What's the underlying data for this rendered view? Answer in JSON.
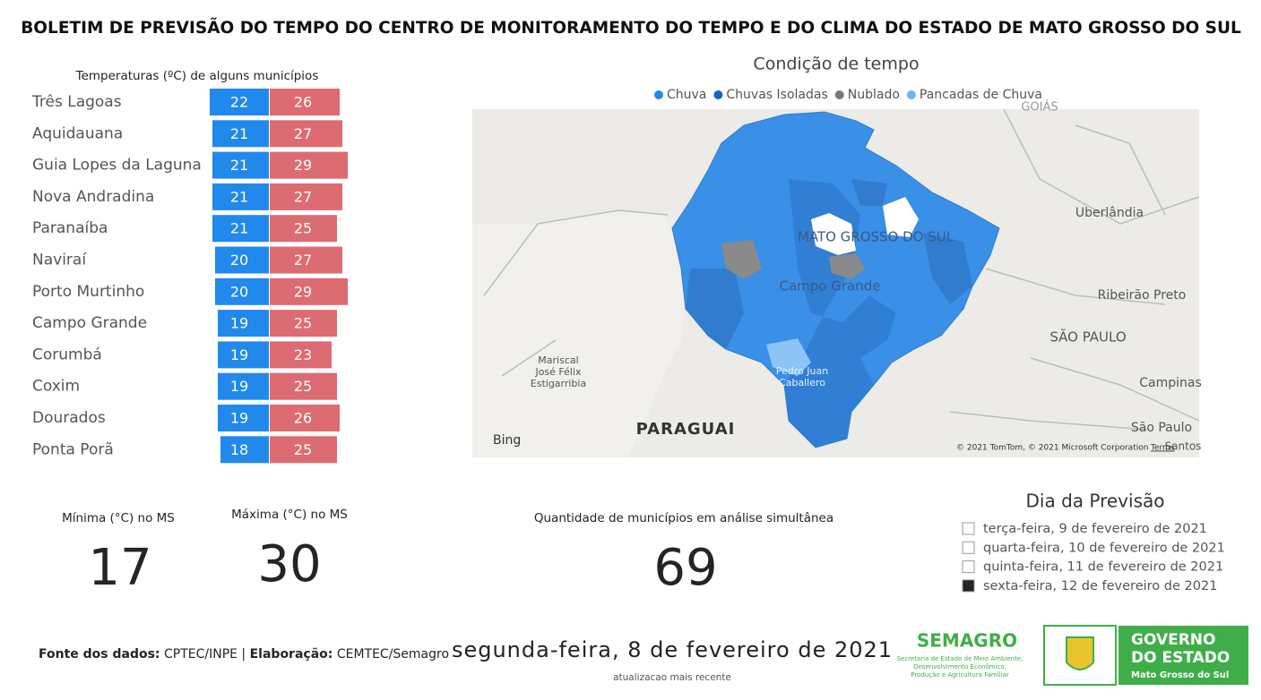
{
  "header": {
    "title": "BOLETIM DE PREVISÃO DO TEMPO DO CENTRO DE MONITORAMENTO DO TEMPO E DO CLIMA DO ESTADO DE MATO GROSSO DO SUL"
  },
  "chart_data": {
    "type": "bar",
    "title": "Temperaturas (ºC) de alguns municípios",
    "categories": [
      "Três Lagoas",
      "Aquidauana",
      "Guia Lopes da Laguna",
      "Nova Andradina",
      "Paranaíba",
      "Naviraí",
      "Porto Murtinho",
      "Campo Grande",
      "Corumbá",
      "Coxim",
      "Dourados",
      "Ponta Porã"
    ],
    "series": [
      {
        "color": "#2189ec",
        "values": [
          22,
          21,
          21,
          21,
          21,
          20,
          20,
          19,
          19,
          19,
          19,
          18
        ]
      },
      {
        "color": "#dd6b72",
        "values": [
          26,
          27,
          29,
          27,
          25,
          27,
          29,
          25,
          23,
          25,
          26,
          25
        ]
      }
    ]
  },
  "map": {
    "title": "Condição de tempo",
    "legend": [
      {
        "name": "Chuva",
        "color": "#2189ec"
      },
      {
        "name": "Chuvas Isoladas",
        "color": "#1565c0"
      },
      {
        "name": "Nublado",
        "color": "#777777"
      },
      {
        "name": "Pancadas de Chuva",
        "color": "#6cb4f5"
      }
    ],
    "labels": [
      "GOIÁS",
      "Uberlândia",
      "MATO GROSSO DO SUL",
      "Campo Grande",
      "Ribeirão Preto",
      "SÃO PAULO",
      "Mariscal",
      "José Félix",
      "Estigarribia",
      "Pedro Juan",
      "Caballero",
      "Campinas",
      "São Paulo",
      "Santos",
      "PARAGUAI"
    ],
    "attribution": "Bing",
    "copyright": "© 2021 TomTom, © 2021 Microsoft Corporation",
    "terms": "Terms"
  },
  "cards": [
    {
      "label": "Mínima (°C) no MS",
      "value": "17"
    },
    {
      "label": "Máxima (°C) no MS",
      "value": "30"
    },
    {
      "label": "Quantidade de municípios em análise simultânea",
      "value": "69"
    }
  ],
  "slicer": {
    "title": "Dia da Previsão",
    "items": [
      {
        "label": "terça-feira, 9 de fevereiro de 2021",
        "selected": false
      },
      {
        "label": "quarta-feira, 10 de fevereiro de 2021",
        "selected": false
      },
      {
        "label": "quinta-feira, 11 de fevereiro de 2021",
        "selected": false
      },
      {
        "label": "sexta-feira, 12 de fevereiro de 2021",
        "selected": true
      }
    ]
  },
  "footer": {
    "source": [
      "Fonte dos dados:",
      "CPTEC/INPE |",
      "Elaboração:",
      "CEMTEC/Semagro"
    ],
    "date": "segunda-feira, 8 de fevereiro de 2021",
    "date_caption": "atualizacao mais recente",
    "semagro": {
      "name": "SEMAGRO",
      "lines": [
        "Secretaria de Estado de Meio Ambiente,",
        "Desenvolvimento Econômico,",
        "Produção e Agricultura Familiar"
      ]
    },
    "governo": [
      "GOVERNO",
      "DO ESTADO",
      "Mato Grosso do Sul"
    ]
  }
}
